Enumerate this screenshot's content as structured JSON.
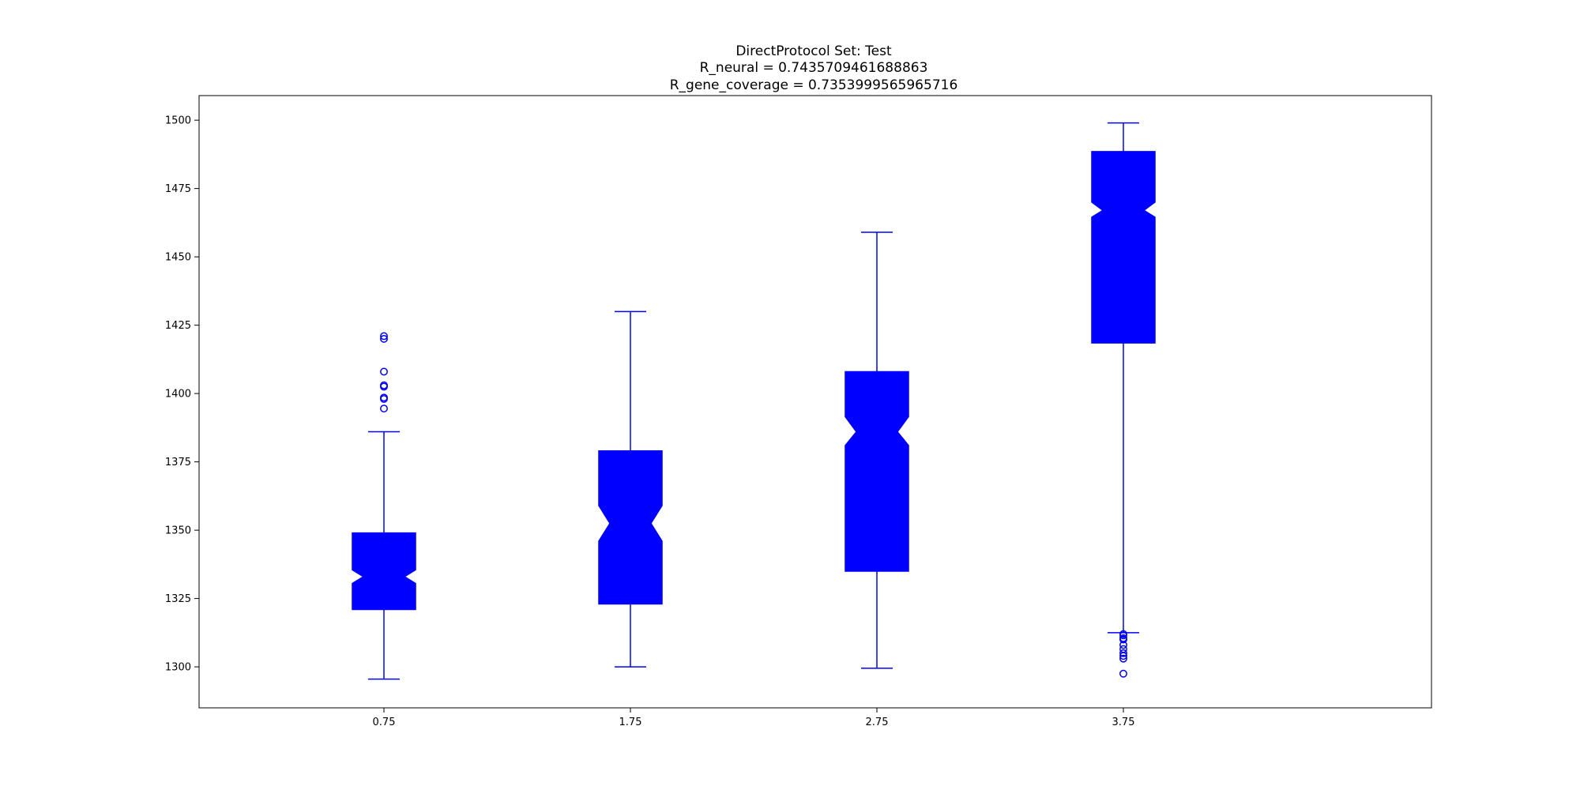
{
  "chart_data": {
    "type": "boxplot",
    "title_lines": [
      "DirectProtocol Set: Test",
      "R_neural = 0.7435709461688863",
      "R_gene_coverage = 0.7353999565965716"
    ],
    "xlabel": "",
    "ylabel": "",
    "xlim": [
      0,
      5
    ],
    "ylim": [
      1285,
      1509
    ],
    "y_ticks": [
      1300,
      1325,
      1350,
      1375,
      1400,
      1425,
      1450,
      1475,
      1500
    ],
    "color": "#0000ff",
    "notched": true,
    "boxes": [
      {
        "position": 0.75,
        "label": "0.75",
        "whisker_low": 1295.5,
        "q1": 1321,
        "median": 1333,
        "q3": 1349,
        "notch_low": 1330.5,
        "notch_high": 1335.5,
        "whisker_high": 1386,
        "outliers_high": [
          1394.5,
          1398,
          1398.5,
          1402.5,
          1403,
          1408,
          1420,
          1421
        ],
        "outliers_low": []
      },
      {
        "position": 1.75,
        "label": "1.75",
        "whisker_low": 1300,
        "q1": 1323,
        "median": 1352.5,
        "q3": 1379,
        "notch_low": 1346,
        "notch_high": 1359,
        "whisker_high": 1430,
        "outliers_high": [],
        "outliers_low": []
      },
      {
        "position": 2.75,
        "label": "2.75",
        "whisker_low": 1299.5,
        "q1": 1335,
        "median": 1386,
        "q3": 1408,
        "notch_low": 1381,
        "notch_high": 1391.5,
        "whisker_high": 1459,
        "outliers_high": [],
        "outliers_low": []
      },
      {
        "position": 3.75,
        "label": "3.75",
        "whisker_low": 1312.5,
        "q1": 1418.5,
        "median": 1467,
        "q3": 1488.5,
        "notch_low": 1464.5,
        "notch_high": 1470,
        "whisker_high": 1499,
        "outliers_high": [],
        "outliers_low": [
          1297.5,
          1303,
          1304,
          1305,
          1306.5,
          1308,
          1310,
          1310.5,
          1311.5,
          1312
        ]
      }
    ]
  }
}
